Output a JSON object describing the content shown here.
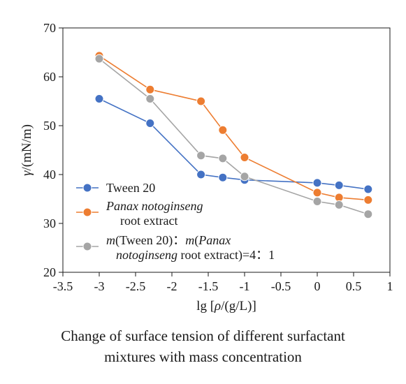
{
  "chart_data": {
    "type": "line",
    "xlabel_parts": [
      {
        "text": "lg [",
        "italic": false
      },
      {
        "text": "ρ",
        "italic": true
      },
      {
        "text": "/(g/L)]",
        "italic": false
      }
    ],
    "ylabel_parts": [
      {
        "text": "γ",
        "italic": true
      },
      {
        "text": "/(mN/m)",
        "italic": false
      }
    ],
    "xlim": [
      -3.5,
      1
    ],
    "ylim": [
      20,
      70
    ],
    "xticks": [
      -3.5,
      -3,
      -2.5,
      -2,
      -1.5,
      -1,
      -0.5,
      0,
      0.5,
      1
    ],
    "xtick_labels": [
      "-3.5",
      "-3",
      "-2.5",
      "-2",
      "-1.5",
      "-1",
      "-0.5",
      "0",
      "0.5",
      "1"
    ],
    "yticks": [
      20,
      30,
      40,
      50,
      60,
      70
    ],
    "ytick_labels": [
      "20",
      "30",
      "40",
      "50",
      "60",
      "70"
    ],
    "grid": false,
    "legend_position": "lower-left",
    "series": [
      {
        "name_lines": [
          [
            {
              "text": "Tween 20",
              "italic": false
            }
          ]
        ],
        "color": "#4472C4",
        "x": [
          -3,
          -2.3,
          -1.6,
          -1.3,
          -1,
          0,
          0.3,
          0.7
        ],
        "y": [
          55.5,
          50.5,
          40,
          39.4,
          38.9,
          38.3,
          37.8,
          37
        ]
      },
      {
        "name_lines": [
          [
            {
              "text": "Panax notoginseng",
              "italic": true
            }
          ],
          [
            {
              "text": "root extract",
              "italic": false
            }
          ]
        ],
        "color": "#ED7D31",
        "x": [
          -3,
          -2.3,
          -1.6,
          -1.3,
          -1,
          0,
          0.3,
          0.7
        ],
        "y": [
          64.3,
          57.4,
          55,
          49.1,
          43.5,
          36.3,
          35.3,
          34.8
        ]
      },
      {
        "name_lines": [
          [
            {
              "text": "m",
              "italic": true
            },
            {
              "text": "(Tween 20)：",
              "italic": false
            },
            {
              "text": "m",
              "italic": true
            },
            {
              "text": "(",
              "italic": false
            },
            {
              "text": "Panax",
              "italic": true
            }
          ],
          [
            {
              "text": "notoginseng",
              "italic": true
            },
            {
              "text": " root extract)=4：1",
              "italic": false
            }
          ]
        ],
        "color": "#A5A5A5",
        "x": [
          -3,
          -2.3,
          -1.6,
          -1.3,
          -1,
          0,
          0.3,
          0.7
        ],
        "y": [
          63.7,
          55.5,
          43.9,
          43.3,
          39.6,
          34.5,
          33.8,
          31.9
        ]
      }
    ]
  },
  "caption": {
    "line1": "Change of surface tension of different surfactant",
    "line2": "mixtures with mass concentration"
  }
}
